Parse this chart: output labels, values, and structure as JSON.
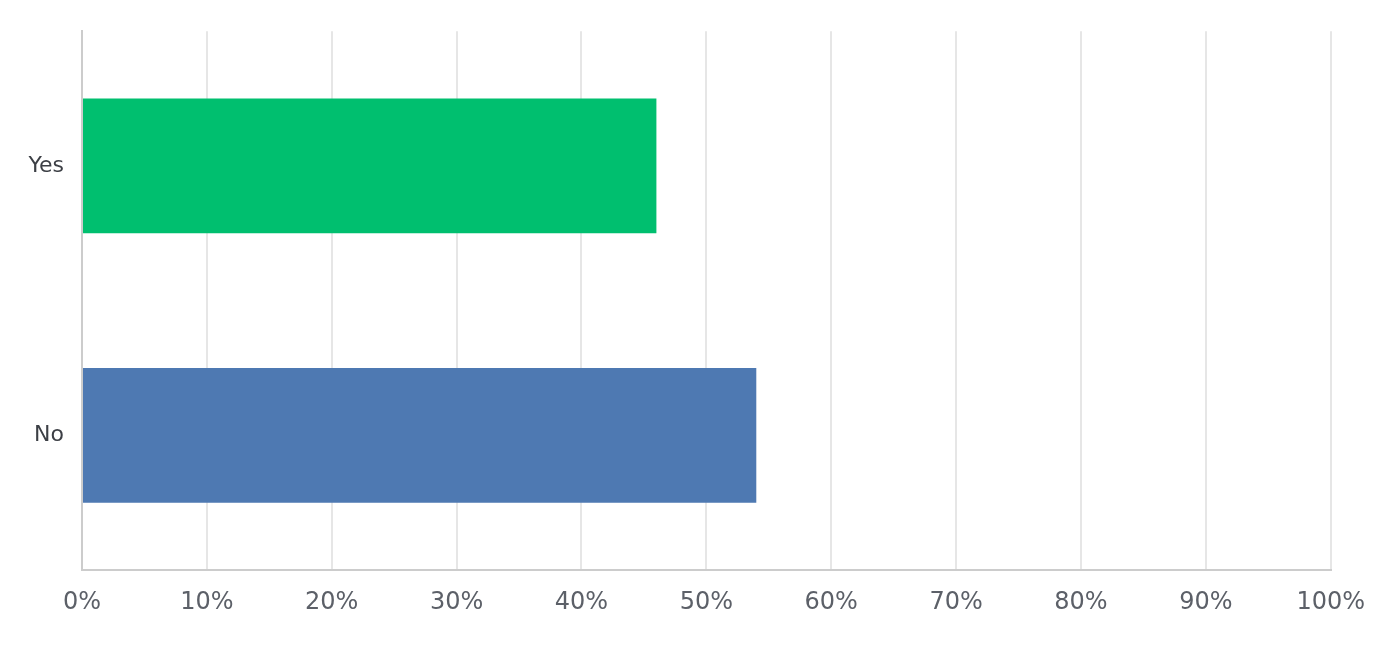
{
  "chart_data": {
    "type": "bar",
    "orientation": "horizontal",
    "categories": [
      "Yes",
      "No"
    ],
    "values": [
      46,
      54
    ],
    "colors": [
      "#00bf6f",
      "#4e79b2"
    ],
    "xlim": [
      0,
      100
    ],
    "xticks": [
      {
        "value": 0,
        "label": "0%"
      },
      {
        "value": 10,
        "label": "10%"
      },
      {
        "value": 20,
        "label": "20%"
      },
      {
        "value": 30,
        "label": "30%"
      },
      {
        "value": 40,
        "label": "40%"
      },
      {
        "value": 50,
        "label": "50%"
      },
      {
        "value": 60,
        "label": "60%"
      },
      {
        "value": 70,
        "label": "70%"
      },
      {
        "value": 80,
        "label": "80%"
      },
      {
        "value": 90,
        "label": "90%"
      },
      {
        "value": 100,
        "label": "100%"
      }
    ],
    "grid": "x",
    "legend": false
  }
}
